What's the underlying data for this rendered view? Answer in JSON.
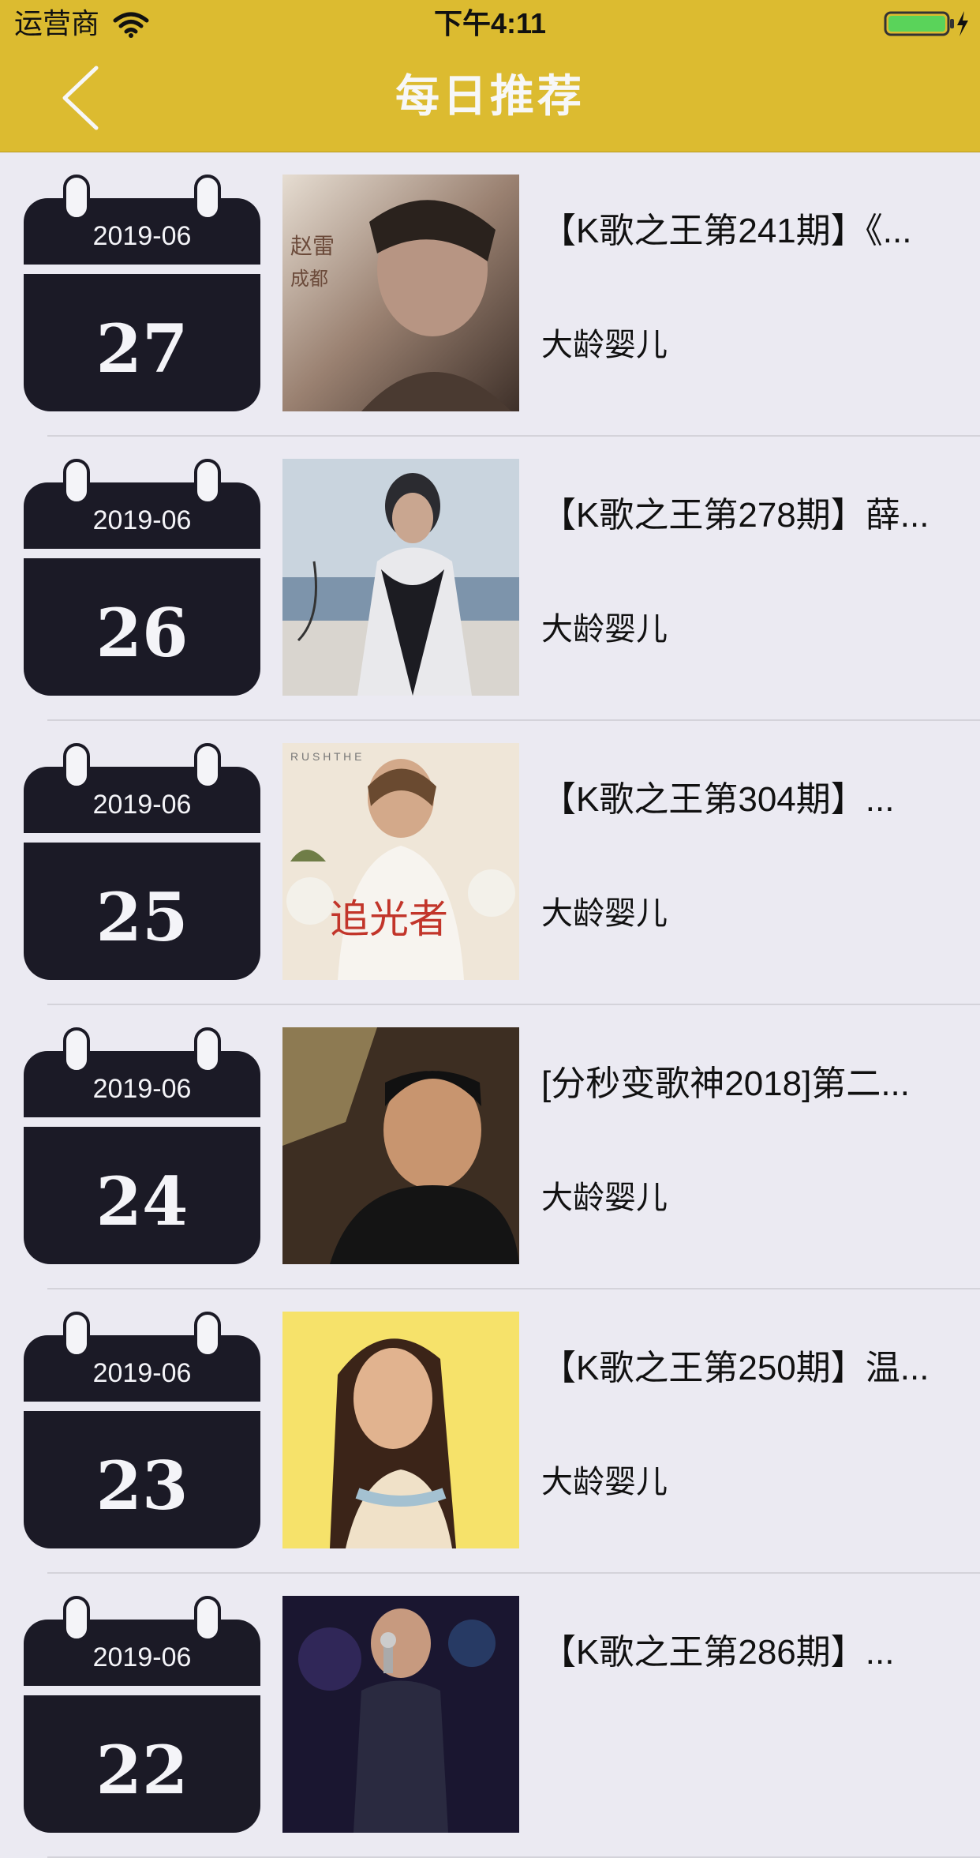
{
  "status_bar": {
    "carrier": "运营商",
    "time": "下午4:11",
    "wifi_icon": "wifi-icon",
    "battery_icon": "battery-charging-icon",
    "battery_level": 1.0,
    "battery_color": "#5ad35a"
  },
  "nav": {
    "title": "每日推荐",
    "back_icon": "chevron-left-icon",
    "bar_color": "#dcbb30"
  },
  "items": [
    {
      "month": "2019-06",
      "day": "27",
      "title": "【K歌之王第241期】《...",
      "author": "大龄婴儿"
    },
    {
      "month": "2019-06",
      "day": "26",
      "title": "【K歌之王第278期】薛...",
      "author": "大龄婴儿"
    },
    {
      "month": "2019-06",
      "day": "25",
      "title": "【K歌之王第304期】...",
      "author": "大龄婴儿"
    },
    {
      "month": "2019-06",
      "day": "24",
      "title": "[分秒变歌神2018]第二...",
      "author": "大龄婴儿"
    },
    {
      "month": "2019-06",
      "day": "23",
      "title": "【K歌之王第250期】温...",
      "author": "大龄婴儿"
    },
    {
      "month": "2019-06",
      "day": "22",
      "title": "【K歌之王第286期】...",
      "author": ""
    }
  ]
}
